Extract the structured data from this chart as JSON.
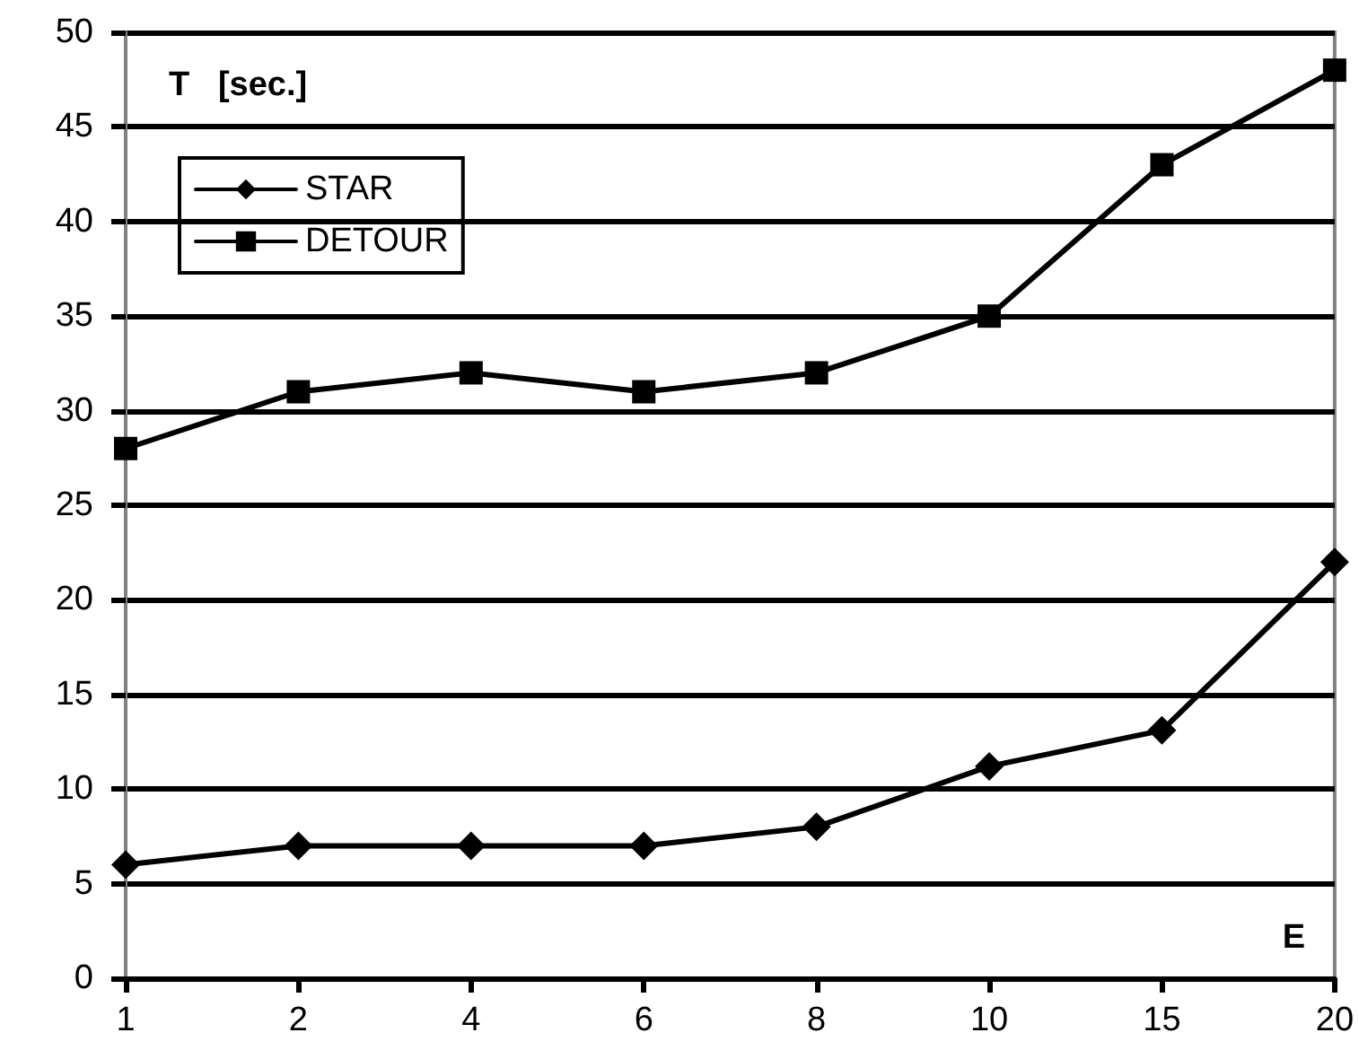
{
  "chart_data": {
    "type": "line",
    "xlabel": "E",
    "ylabel": "T   [sec.]",
    "categories": [
      "1",
      "2",
      "4",
      "6",
      "8",
      "10",
      "15",
      "20"
    ],
    "series": [
      {
        "name": "STAR",
        "color": "#000000",
        "marker": "diamond",
        "values": [
          6,
          7,
          7,
          7,
          8,
          11.2,
          13.1,
          22
        ]
      },
      {
        "name": "DETOUR",
        "color": "#000000",
        "marker": "square",
        "values": [
          28,
          31,
          32,
          31,
          32,
          35,
          43,
          48
        ]
      }
    ],
    "ylim": [
      0,
      50
    ],
    "yticks": [
      0,
      5,
      10,
      15,
      20,
      25,
      30,
      35,
      40,
      45,
      50
    ],
    "grid": "y",
    "legend": "top left",
    "line_style": "solid"
  }
}
